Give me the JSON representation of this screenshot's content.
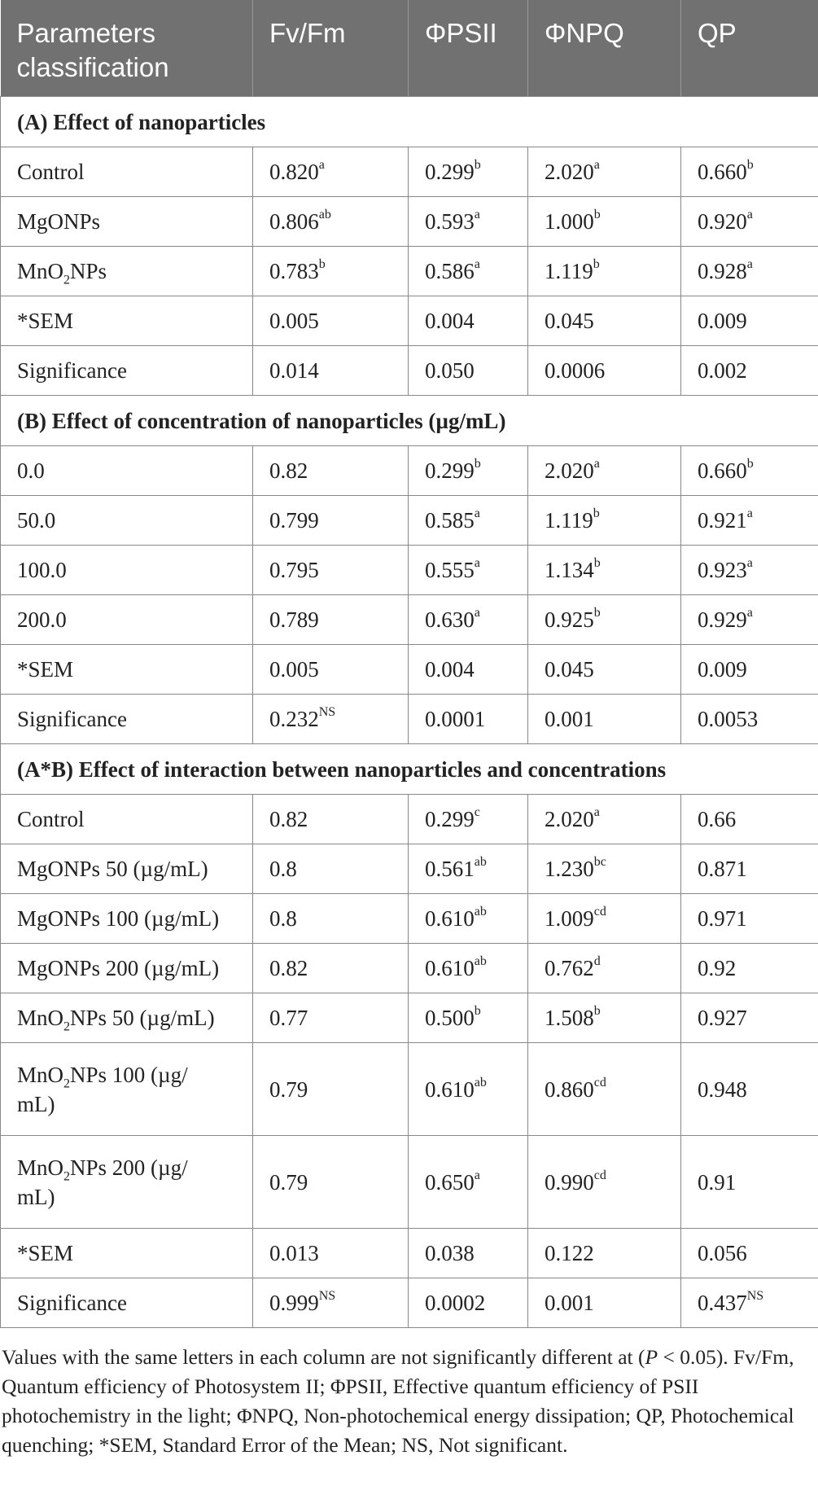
{
  "header": [
    "Parameters classification",
    "Fv/Fm",
    "ΦPSII",
    "ΦNPQ",
    "QP"
  ],
  "sections": [
    {
      "title": "(A) Effect of nanoparticles",
      "rows": [
        {
          "label": [
            {
              "t": "Control"
            }
          ],
          "cells": [
            [
              "0.820",
              "a"
            ],
            [
              "0.299",
              "b"
            ],
            [
              "2.020",
              "a"
            ],
            [
              "0.660",
              "b"
            ]
          ]
        },
        {
          "label": [
            {
              "t": "MgONPs"
            }
          ],
          "cells": [
            [
              "0.806",
              "ab"
            ],
            [
              "0.593",
              "a"
            ],
            [
              "1.000",
              "b"
            ],
            [
              "0.920",
              "a"
            ]
          ]
        },
        {
          "label": [
            {
              "t": "MnO"
            },
            {
              "sub": "2"
            },
            {
              "t": "NPs"
            }
          ],
          "cells": [
            [
              "0.783",
              "b"
            ],
            [
              "0.586",
              "a"
            ],
            [
              "1.119",
              "b"
            ],
            [
              "0.928",
              "a"
            ]
          ]
        },
        {
          "label": [
            {
              "t": "*SEM"
            }
          ],
          "cells": [
            [
              "0.005",
              ""
            ],
            [
              "0.004",
              ""
            ],
            [
              "0.045",
              ""
            ],
            [
              "0.009",
              ""
            ]
          ]
        },
        {
          "label": [
            {
              "t": "Significance"
            }
          ],
          "cells": [
            [
              "0.014",
              ""
            ],
            [
              "0.050",
              ""
            ],
            [
              "0.0006",
              ""
            ],
            [
              "0.002",
              ""
            ]
          ]
        }
      ]
    },
    {
      "title": "(B) Effect of concentration of nanoparticles (µg/mL)",
      "rows": [
        {
          "label": [
            {
              "t": "0.0"
            }
          ],
          "cells": [
            [
              "0.82",
              ""
            ],
            [
              "0.299",
              "b"
            ],
            [
              "2.020",
              "a"
            ],
            [
              "0.660",
              "b"
            ]
          ]
        },
        {
          "label": [
            {
              "t": "50.0"
            }
          ],
          "cells": [
            [
              "0.799",
              ""
            ],
            [
              "0.585",
              "a"
            ],
            [
              "1.119",
              "b"
            ],
            [
              "0.921",
              "a"
            ]
          ]
        },
        {
          "label": [
            {
              "t": "100.0"
            }
          ],
          "cells": [
            [
              "0.795",
              ""
            ],
            [
              "0.555",
              "a"
            ],
            [
              "1.134",
              "b"
            ],
            [
              "0.923",
              "a"
            ]
          ]
        },
        {
          "label": [
            {
              "t": "200.0"
            }
          ],
          "cells": [
            [
              "0.789",
              ""
            ],
            [
              "0.630",
              "a"
            ],
            [
              "0.925",
              "b"
            ],
            [
              "0.929",
              "a"
            ]
          ]
        },
        {
          "label": [
            {
              "t": "*SEM"
            }
          ],
          "cells": [
            [
              "0.005",
              ""
            ],
            [
              "0.004",
              ""
            ],
            [
              "0.045",
              ""
            ],
            [
              "0.009",
              ""
            ]
          ]
        },
        {
          "label": [
            {
              "t": "Significance"
            }
          ],
          "cells": [
            [
              "0.232",
              "NS"
            ],
            [
              "0.0001",
              ""
            ],
            [
              "0.001",
              ""
            ],
            [
              "0.0053",
              ""
            ]
          ]
        }
      ]
    },
    {
      "title": "(A*B) Effect of interaction between nanoparticles and concentrations",
      "rows": [
        {
          "label": [
            {
              "t": "Control"
            }
          ],
          "cells": [
            [
              "0.82",
              ""
            ],
            [
              "0.299",
              "c"
            ],
            [
              "2.020",
              "a"
            ],
            [
              "0.66",
              ""
            ]
          ]
        },
        {
          "label": [
            {
              "t": "MgONPs 50 (µg/mL)"
            }
          ],
          "cells": [
            [
              "0.8",
              ""
            ],
            [
              "0.561",
              "ab"
            ],
            [
              "1.230",
              "bc"
            ],
            [
              "0.871",
              ""
            ]
          ]
        },
        {
          "label": [
            {
              "t": "MgONPs 100 (µg/mL)"
            }
          ],
          "cells": [
            [
              "0.8",
              ""
            ],
            [
              "0.610",
              "ab"
            ],
            [
              "1.009",
              "cd"
            ],
            [
              "0.971",
              ""
            ]
          ]
        },
        {
          "label": [
            {
              "t": "MgONPs 200 (µg/mL)"
            }
          ],
          "cells": [
            [
              "0.82",
              ""
            ],
            [
              "0.610",
              "ab"
            ],
            [
              "0.762",
              "d"
            ],
            [
              "0.92",
              ""
            ]
          ]
        },
        {
          "label": [
            {
              "t": "MnO"
            },
            {
              "sub": "2"
            },
            {
              "t": "NPs 50 (µg/mL)"
            }
          ],
          "cells": [
            [
              "0.77",
              ""
            ],
            [
              "0.500",
              "b"
            ],
            [
              "1.508",
              "b"
            ],
            [
              "0.927",
              ""
            ]
          ]
        },
        {
          "label": [
            {
              "t": "MnO"
            },
            {
              "sub": "2"
            },
            {
              "t": "NPs 100 (µg/"
            },
            {
              "br": true
            },
            {
              "t": "mL)"
            }
          ],
          "tall": true,
          "cells": [
            [
              "0.79",
              ""
            ],
            [
              "0.610",
              "ab"
            ],
            [
              "0.860",
              "cd"
            ],
            [
              "0.948",
              ""
            ]
          ]
        },
        {
          "label": [
            {
              "t": "MnO"
            },
            {
              "sub": "2"
            },
            {
              "t": "NPs 200 (µg/"
            },
            {
              "br": true
            },
            {
              "t": "mL)"
            }
          ],
          "tall": true,
          "cells": [
            [
              "0.79",
              ""
            ],
            [
              "0.650",
              "a"
            ],
            [
              "0.990",
              "cd"
            ],
            [
              "0.91",
              ""
            ]
          ]
        },
        {
          "label": [
            {
              "t": "*SEM"
            }
          ],
          "cells": [
            [
              "0.013",
              ""
            ],
            [
              "0.038",
              ""
            ],
            [
              "0.122",
              ""
            ],
            [
              "0.056",
              ""
            ]
          ]
        },
        {
          "label": [
            {
              "t": "Significance"
            }
          ],
          "cells": [
            [
              "0.999",
              "NS"
            ],
            [
              "0.0002",
              ""
            ],
            [
              "0.001",
              ""
            ],
            [
              "0.437",
              "NS"
            ]
          ]
        }
      ]
    }
  ],
  "footnote": [
    {
      "t": "Values with the same letters in each column are not significantly different at ("
    },
    {
      "i": "P"
    },
    {
      "t": " < 0.05). Fv/Fm, Quantum efficiency of Photosystem II; ΦPSII, Effective quantum efficiency of PSII photochemistry in the light; ΦNPQ, Non-photochemical energy dissipation; QP, Photochemical quenching; *SEM, Standard Error of the Mean; NS, Not significant."
    }
  ]
}
